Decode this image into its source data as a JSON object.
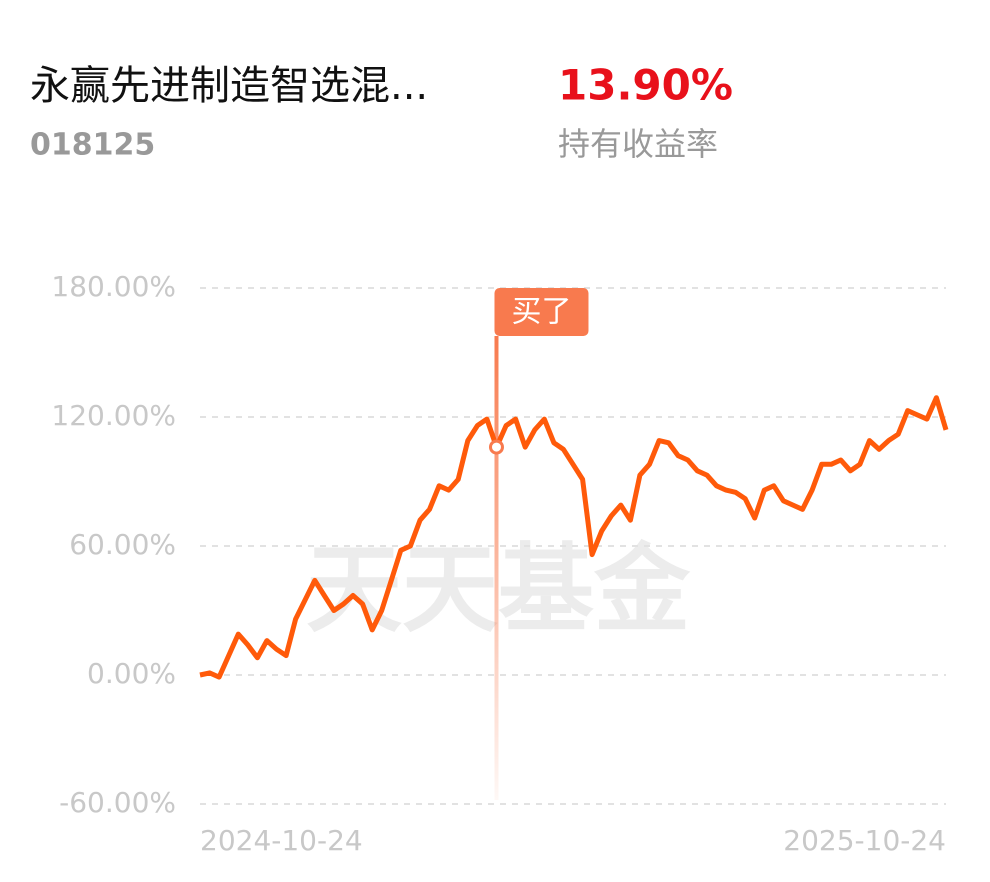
{
  "header": {
    "title": "永赢先进制造智选混...",
    "code": "018125",
    "return": "13.90%",
    "return_label": "持有收益率"
  },
  "chart_data": {
    "type": "line",
    "watermark": "天天基金",
    "categories": [
      "2024-10-24",
      null,
      null,
      null,
      null,
      null,
      null,
      null,
      null,
      null,
      null,
      null,
      null,
      null,
      null,
      null,
      null,
      null,
      null,
      null,
      null,
      null,
      null,
      null,
      null,
      null,
      null,
      null,
      null,
      null,
      null,
      null,
      null,
      null,
      null,
      null,
      null,
      null,
      null,
      null,
      null,
      null,
      null,
      null,
      null,
      null,
      null,
      null,
      null,
      null,
      null,
      null,
      null,
      null,
      null,
      null,
      null,
      null,
      null,
      null,
      null,
      null,
      null,
      null,
      null,
      null,
      null,
      null,
      null,
      null,
      null,
      null,
      null,
      null,
      null,
      null,
      null,
      null,
      "2025-10-24"
    ],
    "series": [
      {
        "color": "#ff5a0a",
        "values": [
          0,
          1,
          -1,
          9,
          19,
          14,
          8,
          16,
          12,
          9,
          26,
          35,
          44,
          37,
          30,
          33,
          37,
          33,
          21,
          30,
          44,
          58,
          60,
          72,
          77,
          88,
          86,
          91,
          109,
          116,
          119,
          106,
          116,
          119,
          106,
          114,
          119,
          108,
          105,
          98,
          91,
          56,
          67,
          74,
          79,
          72,
          93,
          98,
          109,
          108,
          102,
          100,
          95,
          93,
          88,
          86,
          85,
          82,
          73,
          86,
          88,
          81,
          79,
          77,
          86,
          98,
          98,
          100,
          95,
          98,
          109,
          105,
          109,
          112,
          123,
          121,
          119,
          129,
          114
        ]
      }
    ],
    "annotation": {
      "text": "买了",
      "color": "#f87a4e",
      "index": 31
    },
    "ylim": [
      -60,
      180
    ],
    "yticks": [
      {
        "value": -60,
        "label": "-60.00%"
      },
      {
        "value": 0,
        "label": "0.00%"
      },
      {
        "value": 60,
        "label": "60.00%"
      },
      {
        "value": 120,
        "label": "120.00%"
      },
      {
        "value": 180,
        "label": "180.00%"
      }
    ],
    "grid": true
  }
}
